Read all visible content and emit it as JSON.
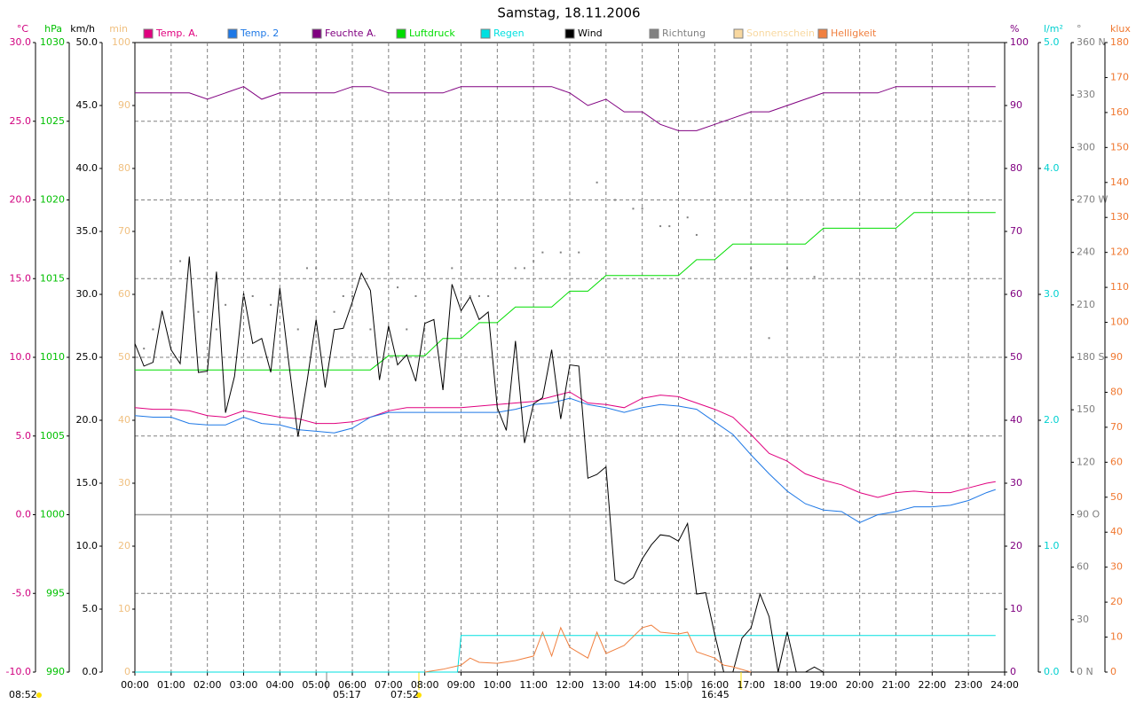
{
  "chart_data": {
    "type": "line",
    "title": "Samstag, 18.11.2006",
    "xlim": [
      0,
      24
    ],
    "xticks": [
      {
        "value": 0,
        "label": "00:00"
      },
      {
        "value": 1,
        "label": "01:00"
      },
      {
        "value": 2,
        "label": "02:00"
      },
      {
        "value": 3,
        "label": "03:00"
      },
      {
        "value": 4,
        "label": "04:00"
      },
      {
        "value": 5,
        "label": "05:00"
      },
      {
        "value": 6,
        "label": "06:00"
      },
      {
        "value": 7,
        "label": "07:00"
      },
      {
        "value": 8,
        "label": "08:00"
      },
      {
        "value": 9,
        "label": "09:00"
      },
      {
        "value": 10,
        "label": "10:00"
      },
      {
        "value": 11,
        "label": "11:00"
      },
      {
        "value": 12,
        "label": "12:00"
      },
      {
        "value": 13,
        "label": "13:00"
      },
      {
        "value": 14,
        "label": "14:00"
      },
      {
        "value": 15,
        "label": "15:00"
      },
      {
        "value": 16,
        "label": "16:00"
      },
      {
        "value": 17,
        "label": "17:00"
      },
      {
        "value": 18,
        "label": "18:00"
      },
      {
        "value": 19,
        "label": "19:00"
      },
      {
        "value": 20,
        "label": "20:00"
      },
      {
        "value": 21,
        "label": "21:00"
      },
      {
        "value": 22,
        "label": "22:00"
      },
      {
        "value": 23,
        "label": "23:00"
      },
      {
        "value": 24,
        "label": "24:00"
      }
    ],
    "grid": true,
    "axes": [
      {
        "label": "°C",
        "side": "left",
        "color": "#d0007f",
        "lim": [
          -10,
          30
        ],
        "ticks": [
          {
            "value": 30,
            "label": "30.0"
          },
          {
            "value": 25,
            "label": "25.0"
          },
          {
            "value": 20,
            "label": "20.0"
          },
          {
            "value": 15,
            "label": "15.0"
          },
          {
            "value": 10,
            "label": "10.0"
          },
          {
            "value": 5,
            "label": "5.0"
          },
          {
            "value": 0,
            "label": "0.0"
          },
          {
            "value": -5,
            "label": "-5.0"
          },
          {
            "value": -10,
            "label": "-10.0"
          }
        ]
      },
      {
        "label": "hPa",
        "side": "left",
        "color": "#00c000",
        "lim": [
          990,
          1030
        ],
        "ticks": [
          1030,
          1025,
          1020,
          1015,
          1010,
          1005,
          1000,
          995,
          990
        ]
      },
      {
        "label": "km/h",
        "side": "left",
        "color": "#000000",
        "lim": [
          0,
          50
        ],
        "ticks": [
          {
            "value": 50,
            "label": "50.0"
          },
          {
            "value": 45,
            "label": "45.0"
          },
          {
            "value": 40,
            "label": "40.0"
          },
          {
            "value": 35,
            "label": "35.0"
          },
          {
            "value": 30,
            "label": "30.0"
          },
          {
            "value": 25,
            "label": "25.0"
          },
          {
            "value": 20,
            "label": "20.0"
          },
          {
            "value": 15,
            "label": "15.0"
          },
          {
            "value": 10,
            "label": "10.0"
          },
          {
            "value": 5,
            "label": "5.0"
          },
          {
            "value": 0,
            "label": "0.0"
          }
        ]
      },
      {
        "label": "min",
        "side": "left",
        "color": "#f0c080",
        "lim": [
          0,
          100
        ],
        "ticks": [
          100,
          90,
          80,
          70,
          60,
          50,
          40,
          30,
          20,
          10,
          0
        ]
      },
      {
        "label": "%",
        "side": "right",
        "color": "#800080",
        "lim": [
          0,
          100
        ],
        "ticks": [
          100,
          90,
          80,
          70,
          60,
          50,
          40,
          30,
          20,
          10,
          0
        ]
      },
      {
        "label": "l/m²",
        "side": "right",
        "color": "#00d0d0",
        "lim": [
          0,
          5
        ],
        "ticks": [
          {
            "value": 5,
            "label": "5.0"
          },
          {
            "value": 4,
            "label": "4.0"
          },
          {
            "value": 3,
            "label": "3.0"
          },
          {
            "value": 2,
            "label": "2.0"
          },
          {
            "value": 1,
            "label": "1.0"
          },
          {
            "value": 0,
            "label": "0.0"
          }
        ]
      },
      {
        "label": "°",
        "side": "right",
        "color": "#808080",
        "lim": [
          0,
          360
        ],
        "ticks": [
          {
            "value": 360,
            "label": "360 N"
          },
          330,
          300,
          {
            "value": 270,
            "label": "270 W"
          },
          240,
          210,
          {
            "value": 180,
            "label": "180 S"
          },
          150,
          120,
          {
            "value": 90,
            "label": "90 O"
          },
          60,
          30,
          {
            "value": 0,
            "label": "0 N"
          }
        ]
      },
      {
        "label": "klux",
        "side": "right",
        "color": "#f07830",
        "lim": [
          0,
          180
        ],
        "ticks": [
          180,
          170,
          160,
          150,
          140,
          130,
          120,
          110,
          100,
          90,
          80,
          70,
          60,
          50,
          40,
          30,
          20,
          10,
          0
        ]
      }
    ],
    "series": [
      {
        "name": "Temp. A.",
        "color": "#e0007f",
        "axis": 0,
        "type": "line",
        "x": [
          0,
          0.5,
          1,
          1.5,
          2,
          2.5,
          3,
          3.5,
          4,
          4.5,
          5,
          5.5,
          6,
          6.5,
          7,
          7.5,
          8,
          8.5,
          9,
          9.5,
          10,
          10.5,
          11,
          11.5,
          12,
          12.5,
          13,
          13.5,
          14,
          14.5,
          15,
          15.5,
          16,
          16.5,
          17,
          17.5,
          18,
          18.5,
          19,
          19.5,
          20,
          20.5,
          21,
          21.5,
          22,
          22.5,
          23,
          23.5,
          23.75
        ],
        "values": [
          6.8,
          6.7,
          6.7,
          6.6,
          6.3,
          6.2,
          6.6,
          6.4,
          6.2,
          6.1,
          5.8,
          5.8,
          5.9,
          6.2,
          6.6,
          6.8,
          6.8,
          6.8,
          6.8,
          6.9,
          7.0,
          7.1,
          7.2,
          7.5,
          7.8,
          7.1,
          7.0,
          6.8,
          7.4,
          7.6,
          7.5,
          7.1,
          6.7,
          6.2,
          5.1,
          3.9,
          3.4,
          2.6,
          2.2,
          1.9,
          1.4,
          1.1,
          1.4,
          1.5,
          1.4,
          1.4,
          1.7,
          2.0,
          2.1
        ]
      },
      {
        "name": "Temp. 2",
        "color": "#1e78e6",
        "axis": 0,
        "type": "line",
        "x": [
          0,
          0.5,
          1,
          1.5,
          2,
          2.5,
          3,
          3.5,
          4,
          4.5,
          5,
          5.5,
          6,
          6.5,
          7,
          7.5,
          8,
          8.5,
          9,
          9.5,
          10,
          10.5,
          11,
          11.5,
          12,
          12.5,
          13,
          13.5,
          14,
          14.5,
          15,
          15.5,
          16,
          16.5,
          17,
          17.5,
          18,
          18.5,
          19,
          19.5,
          20,
          20.5,
          21,
          21.5,
          22,
          22.5,
          23,
          23.5,
          23.75
        ],
        "values": [
          6.3,
          6.2,
          6.2,
          5.8,
          5.7,
          5.7,
          6.2,
          5.8,
          5.7,
          5.4,
          5.3,
          5.2,
          5.5,
          6.2,
          6.5,
          6.5,
          6.5,
          6.5,
          6.5,
          6.5,
          6.5,
          6.7,
          7.0,
          7.1,
          7.4,
          7.0,
          6.8,
          6.5,
          6.8,
          7.0,
          6.9,
          6.7,
          5.9,
          5.1,
          3.8,
          2.6,
          1.5,
          0.7,
          0.3,
          0.2,
          -0.5,
          0,
          0.2,
          0.5,
          0.5,
          0.6,
          0.9,
          1.4,
          1.6
        ]
      },
      {
        "name": "Feuchte A.",
        "color": "#800080",
        "axis": 4,
        "type": "line",
        "x": [
          0,
          0.5,
          1,
          1.5,
          2,
          2.5,
          3,
          3.5,
          4,
          4.5,
          5,
          5.5,
          6,
          6.5,
          7,
          7.5,
          8,
          8.5,
          9,
          9.5,
          10,
          10.5,
          11,
          11.5,
          12,
          12.5,
          13,
          13.5,
          14,
          14.5,
          15,
          15.5,
          16,
          16.5,
          17,
          17.5,
          18,
          18.5,
          19,
          19.5,
          20,
          20.5,
          21,
          21.5,
          22,
          22.5,
          23,
          23.5,
          23.75
        ],
        "values": [
          92,
          92,
          92,
          92,
          91,
          92,
          93,
          91,
          92,
          92,
          92,
          92,
          93,
          93,
          92,
          92,
          92,
          92,
          93,
          93,
          93,
          93,
          93,
          93,
          92,
          90,
          91,
          89,
          89,
          87,
          86,
          86,
          87,
          88,
          89,
          89,
          90,
          91,
          92,
          92,
          92,
          92,
          93,
          93,
          93,
          93,
          93,
          93,
          93
        ]
      },
      {
        "name": "Luftdruck",
        "color": "#00dd00",
        "axis": 1,
        "type": "line",
        "x": [
          0,
          0.5,
          1,
          1.5,
          2,
          2.5,
          3,
          3.5,
          4,
          4.5,
          5,
          5.5,
          6,
          6.5,
          7,
          7.5,
          8,
          8.5,
          9,
          9.5,
          10,
          10.5,
          11,
          11.5,
          12,
          12.5,
          13,
          13.5,
          14,
          14.5,
          15,
          15.5,
          16,
          16.5,
          17,
          17.5,
          18,
          18.5,
          19,
          19.5,
          20,
          20.5,
          21,
          21.5,
          22,
          22.5,
          23,
          23.5,
          23.75
        ],
        "values": [
          1009.2,
          1009.2,
          1009.2,
          1009.2,
          1009.2,
          1009.2,
          1009.2,
          1009.2,
          1009.2,
          1009.2,
          1009.2,
          1009.2,
          1009.2,
          1009.2,
          1010.1,
          1010.1,
          1010.1,
          1011.2,
          1011.2,
          1012.2,
          1012.2,
          1013.2,
          1013.2,
          1013.2,
          1014.2,
          1014.2,
          1015.2,
          1015.2,
          1015.2,
          1015.2,
          1015.2,
          1016.2,
          1016.2,
          1017.2,
          1017.2,
          1017.2,
          1017.2,
          1017.2,
          1018.2,
          1018.2,
          1018.2,
          1018.2,
          1018.2,
          1019.2,
          1019.2,
          1019.2,
          1019.2,
          1019.2,
          1019.2
        ]
      },
      {
        "name": "Regen",
        "color": "#00e0e0",
        "axis": 5,
        "type": "line",
        "x": [
          0,
          8.9,
          9,
          23.75
        ],
        "values": [
          0,
          0,
          0.29,
          0.29
        ]
      },
      {
        "name": "Wind",
        "color": "#000000",
        "axis": 2,
        "type": "line",
        "x": [
          0,
          0.25,
          0.5,
          0.75,
          1,
          1.25,
          1.5,
          1.75,
          2,
          2.25,
          2.5,
          2.75,
          3,
          3.25,
          3.5,
          3.75,
          4,
          4.25,
          4.5,
          4.75,
          5,
          5.25,
          5.5,
          5.75,
          6,
          6.25,
          6.5,
          6.75,
          7,
          7.25,
          7.5,
          7.75,
          8,
          8.25,
          8.5,
          8.75,
          9,
          9.25,
          9.5,
          9.75,
          10,
          10.25,
          10.5,
          10.75,
          11,
          11.25,
          11.5,
          11.75,
          12,
          12.25,
          12.5,
          12.75,
          13,
          13.25,
          13.5,
          13.75,
          14,
          14.25,
          14.5,
          14.75,
          15,
          15.25,
          15.5,
          15.75,
          16,
          16.25,
          16.5,
          16.75,
          17,
          17.25,
          17.5,
          17.75,
          18,
          18.25,
          18.5,
          18.75,
          19
        ],
        "values": [
          26.1,
          24.3,
          24.6,
          28.7,
          25.6,
          24.5,
          33,
          23.8,
          23.9,
          31.8,
          20.6,
          23.5,
          30.1,
          26.1,
          26.5,
          23.8,
          30.5,
          24.5,
          18.7,
          23.1,
          28,
          22.6,
          27.2,
          27.3,
          29.4,
          31.7,
          30.3,
          23.2,
          27.5,
          24.4,
          25.2,
          23.1,
          27.7,
          28,
          22.4,
          30.8,
          28.7,
          29.8,
          28,
          28.6,
          21,
          19.2,
          26.3,
          18.2,
          21.3,
          21.8,
          25.6,
          20.1,
          24.4,
          24.3,
          15.4,
          15.7,
          16.3,
          7.3,
          7,
          7.5,
          9,
          10.1,
          10.9,
          10.8,
          10.4,
          11.8,
          6.2,
          6.3,
          3,
          0,
          0,
          2.7,
          3.5,
          6.2,
          4.4,
          0,
          3.2,
          0,
          0,
          0.4,
          0
        ]
      },
      {
        "name": "Richtung",
        "color": "#808080",
        "axis": 6,
        "type": "scatter",
        "x": [
          0.25,
          0.5,
          1.25,
          1.75,
          2.25,
          2.5,
          3,
          3.25,
          3.75,
          4.5,
          4.75,
          5,
          5.5,
          5.75,
          6,
          6.5,
          7.25,
          7.5,
          7.75,
          8.75,
          9.25,
          9.5,
          9.75,
          10.5,
          10.75,
          11,
          11.25,
          11.75,
          12.25,
          12.75,
          13.25,
          13.75,
          14,
          14.5,
          14.75,
          15.25,
          15.5,
          17,
          17.5,
          18,
          18.75
        ],
        "values": [
          185,
          196,
          235,
          206,
          196,
          210,
          215,
          215,
          210,
          196,
          231,
          231,
          206,
          215,
          215,
          196,
          220,
          196,
          215,
          231,
          215,
          215,
          215,
          231,
          231,
          235,
          240,
          240,
          240,
          280,
          270,
          265,
          265,
          255,
          255,
          260,
          250,
          231,
          191,
          231,
          226
        ]
      },
      {
        "name": "Sonnenschein",
        "color": "#f8d8a0",
        "axis": 3,
        "type": "line",
        "x": [],
        "values": []
      },
      {
        "name": "Helligkeit",
        "color": "#f08040",
        "axis": 7,
        "type": "line",
        "x": [
          8,
          8.5,
          9,
          9.25,
          9.5,
          10,
          10.5,
          11,
          11.25,
          11.5,
          11.75,
          12,
          12.5,
          12.75,
          13,
          13.5,
          14,
          14.25,
          14.5,
          15,
          15.25,
          15.5,
          16,
          16.25,
          16.5,
          17
        ],
        "values": [
          0,
          0.8,
          2,
          4,
          2.8,
          2.5,
          3.3,
          4.6,
          11.4,
          4.6,
          12.7,
          7.1,
          4,
          11.4,
          5.3,
          7.6,
          12.7,
          13.4,
          11.4,
          10.9,
          11.4,
          5.8,
          4,
          2,
          1.5,
          0
        ]
      }
    ],
    "annotations": [
      "08:52",
      "05:17",
      "07:52",
      "16:45"
    ]
  }
}
